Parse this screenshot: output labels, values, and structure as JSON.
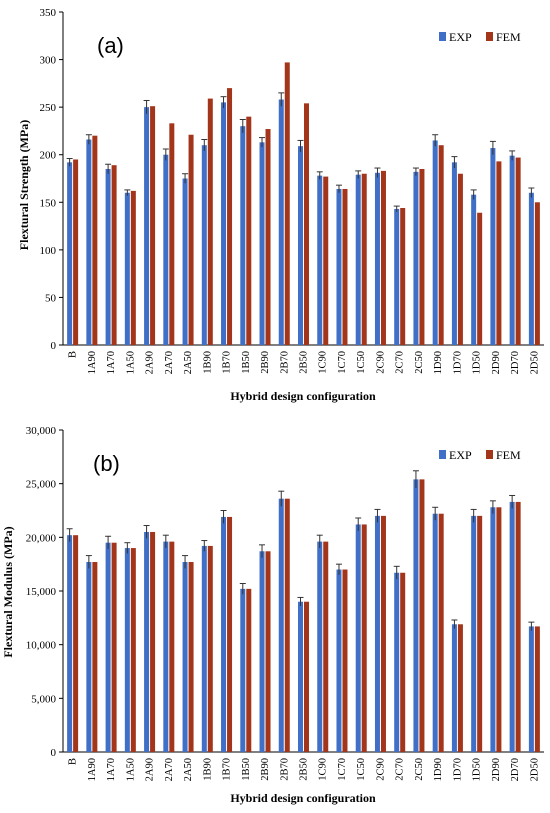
{
  "chart_data": [
    {
      "type": "bar",
      "panel_label": "(a)",
      "xlabel": "Hybrid design configuration",
      "ylabel": "Flextural Strength (MPa)",
      "ylim": [
        0,
        350
      ],
      "yticks": [
        "0",
        "50",
        "100",
        "150",
        "200",
        "250",
        "300",
        "350"
      ],
      "ytick_values": [
        0,
        50,
        100,
        150,
        200,
        250,
        300,
        350
      ],
      "legend_position": "top-right",
      "categories": [
        "B",
        "1A90",
        "1A70",
        "1A50",
        "2A90",
        "2A70",
        "2A50",
        "1B90",
        "1B70",
        "1B50",
        "2B90",
        "2B70",
        "2B50",
        "1C90",
        "1C70",
        "1C50",
        "2C90",
        "2C70",
        "2C50",
        "1D90",
        "1D70",
        "1D50",
        "2D90",
        "2D70",
        "2D50"
      ],
      "series": [
        {
          "name": "EXP",
          "color": "#3f6fc6",
          "values": [
            192,
            216,
            185,
            160,
            250,
            200,
            175,
            210,
            255,
            230,
            213,
            258,
            209,
            178,
            164,
            179,
            181,
            143,
            182,
            215,
            192,
            158,
            207,
            199,
            160
          ],
          "errors": [
            4,
            5,
            5,
            3,
            7,
            6,
            5,
            6,
            6,
            7,
            5,
            7,
            6,
            4,
            4,
            4,
            5,
            3,
            4,
            6,
            6,
            5,
            7,
            5,
            5
          ]
        },
        {
          "name": "FEM",
          "color": "#a3351b",
          "values": [
            195,
            220,
            189,
            162,
            251,
            233,
            221,
            259,
            270,
            240,
            227,
            297,
            254,
            177,
            164,
            180,
            183,
            144,
            185,
            210,
            180,
            139,
            193,
            197,
            150
          ]
        }
      ]
    },
    {
      "type": "bar",
      "panel_label": "(b)",
      "xlabel": "Hybrid design configuration",
      "ylabel": "Flextural Modulus (MPa)",
      "ylim": [
        0,
        30000
      ],
      "yticks": [
        "0",
        "5,000",
        "10,000",
        "15,000",
        "20,000",
        "25,000",
        "30,000"
      ],
      "ytick_values": [
        0,
        5000,
        10000,
        15000,
        20000,
        25000,
        30000
      ],
      "legend_position": "top-right",
      "categories": [
        "B",
        "1A90",
        "1A70",
        "1A50",
        "2A90",
        "2A70",
        "2A50",
        "1B90",
        "1B70",
        "1B50",
        "2B90",
        "2B70",
        "2B50",
        "1C90",
        "1C70",
        "1C50",
        "2C90",
        "2C70",
        "2C50",
        "1D90",
        "1D70",
        "1D50",
        "2D90",
        "2D70",
        "2D50"
      ],
      "series": [
        {
          "name": "EXP",
          "color": "#3f6fc6",
          "values": [
            20200,
            17700,
            19500,
            19000,
            20500,
            19600,
            17700,
            19200,
            21900,
            15200,
            18700,
            23600,
            14000,
            19600,
            17000,
            21200,
            22000,
            16700,
            25400,
            22200,
            11900,
            22000,
            22800,
            23300,
            11700
          ],
          "errors": [
            600,
            600,
            600,
            500,
            600,
            600,
            600,
            500,
            600,
            500,
            600,
            700,
            400,
            600,
            500,
            600,
            600,
            600,
            800,
            600,
            400,
            600,
            600,
            600,
            400
          ]
        },
        {
          "name": "FEM",
          "color": "#a3351b",
          "values": [
            20200,
            17700,
            19500,
            19000,
            20500,
            19600,
            17700,
            19200,
            21900,
            15200,
            18700,
            23600,
            14000,
            19600,
            17000,
            21200,
            22000,
            16700,
            25400,
            22200,
            11900,
            22000,
            22800,
            23300,
            11700
          ]
        }
      ]
    }
  ]
}
